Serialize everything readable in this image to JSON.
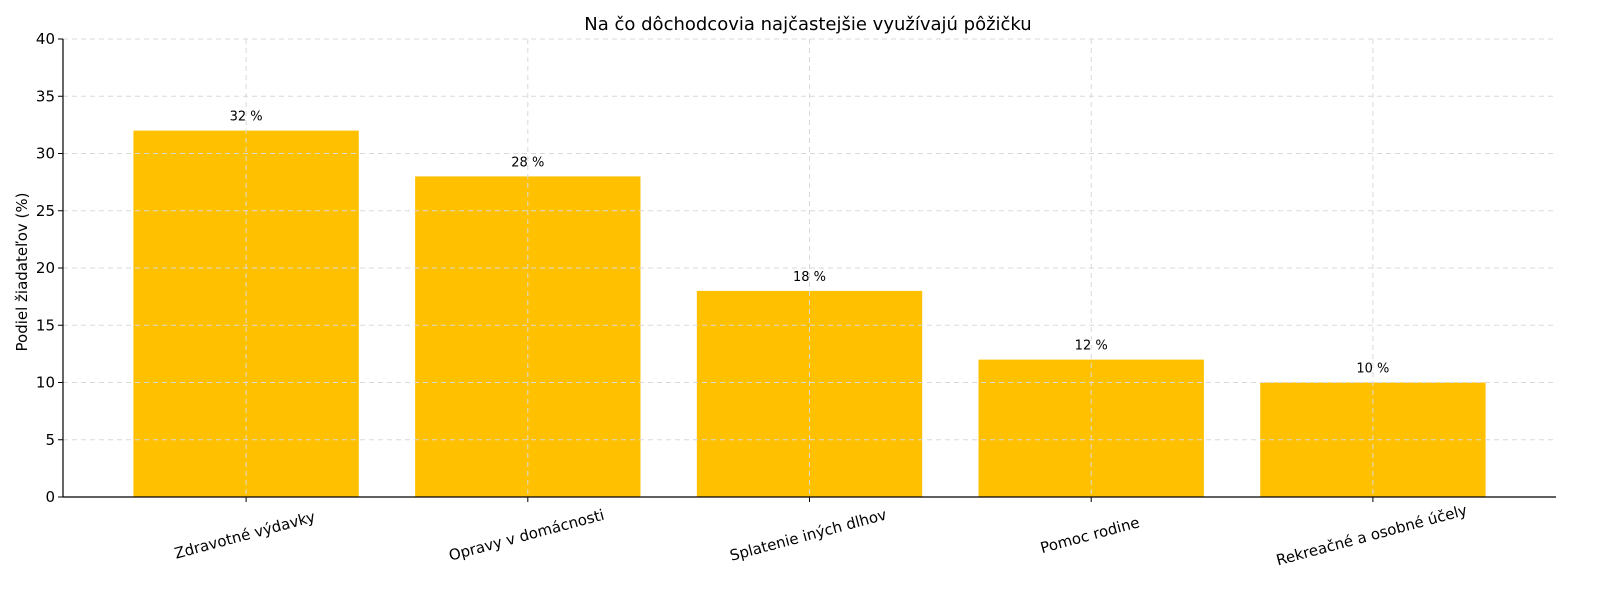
{
  "chart_data": {
    "type": "bar",
    "title": "Na čo dôchodcovia najčastejšie využívajú pôžičku",
    "xlabel": "",
    "ylabel": "Podiel žiadateľov (%)",
    "categories": [
      "Zdravotné výdavky",
      "Opravy v domácnosti",
      "Splatenie iných dlhov",
      "Pomoc rodine",
      "Rekreačné a osobné účely"
    ],
    "values": [
      32,
      28,
      18,
      12,
      10
    ],
    "value_labels": [
      "32 %",
      "28 %",
      "18 %",
      "12 %",
      "10 %"
    ],
    "ylim": [
      0,
      40
    ],
    "yticks": [
      0,
      5,
      10,
      15,
      20,
      25,
      30,
      35,
      40
    ],
    "grid": true,
    "bar_color": "#FFC000",
    "legend": "none"
  }
}
